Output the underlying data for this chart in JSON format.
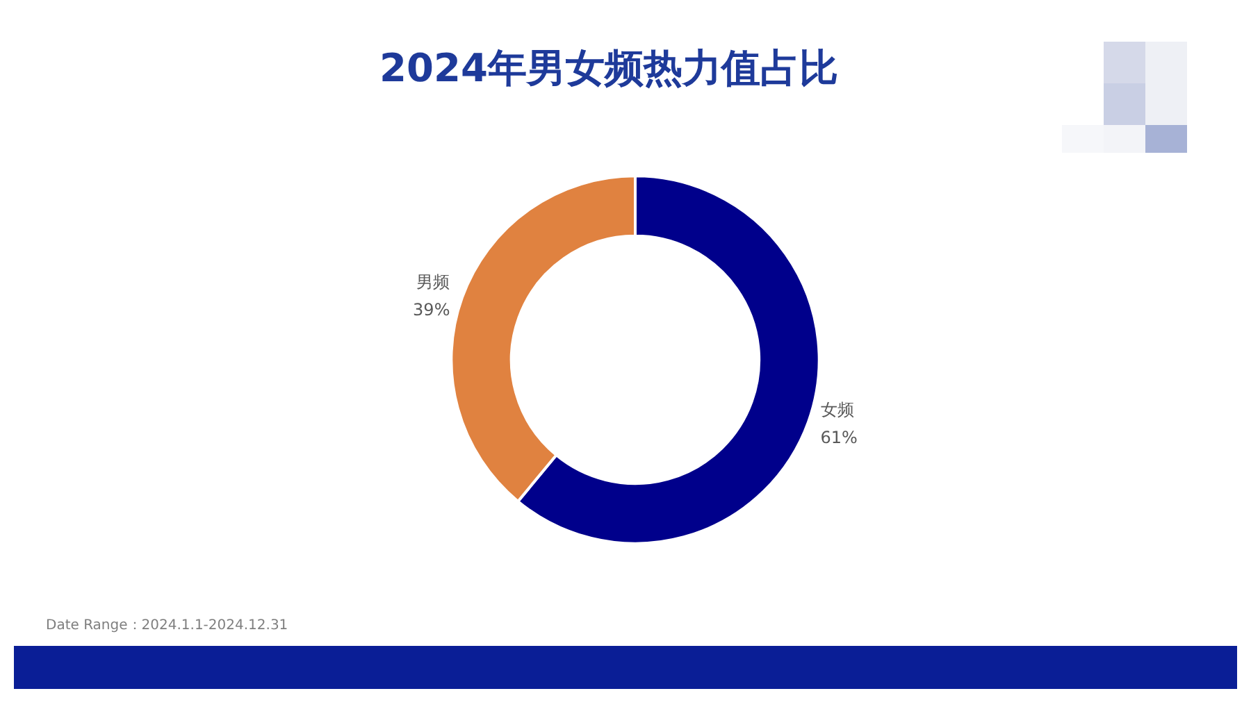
{
  "chart_data": {
    "type": "donut",
    "title": "2024年男女频热力值占比",
    "categories": [
      "女频",
      "男频"
    ],
    "values": [
      61,
      39
    ],
    "colors": [
      "#00008b",
      "#e08240"
    ],
    "value_labels": [
      "61%",
      "39%"
    ],
    "annotations": [
      "Date Range：2024.1.1-2024.12.31"
    ]
  }
}
